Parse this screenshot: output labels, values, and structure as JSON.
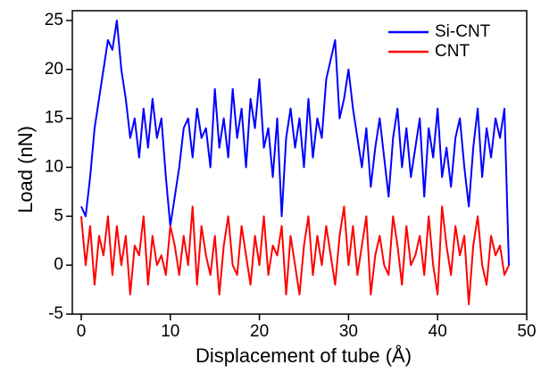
{
  "chart_data": {
    "type": "line",
    "x_label": "Displacement of tube (Å)",
    "y_label": "Load (nN)",
    "x": [
      0,
      0.5,
      1,
      1.5,
      2,
      2.5,
      3,
      3.5,
      4,
      4.5,
      5,
      5.5,
      6,
      6.5,
      7,
      7.5,
      8,
      8.5,
      9,
      9.5,
      10,
      10.5,
      11,
      11.5,
      12,
      12.5,
      13,
      13.5,
      14,
      14.5,
      15,
      15.5,
      16,
      16.5,
      17,
      17.5,
      18,
      18.5,
      19,
      19.5,
      20,
      20.5,
      21,
      21.5,
      22,
      22.5,
      23,
      23.5,
      24,
      24.5,
      25,
      25.5,
      26,
      26.5,
      27,
      27.5,
      28,
      28.5,
      29,
      29.5,
      30,
      30.5,
      31,
      31.5,
      32,
      32.5,
      33,
      33.5,
      34,
      34.5,
      35,
      35.5,
      36,
      36.5,
      37,
      37.5,
      38,
      38.5,
      39,
      39.5,
      40,
      40.5,
      41,
      41.5,
      42,
      42.5,
      43,
      43.5,
      44,
      44.5,
      45,
      45.5,
      46,
      46.5,
      47,
      47.5,
      48
    ],
    "series": [
      {
        "name": "Si-CNT",
        "color": "#0000ff",
        "values": [
          6,
          5,
          9,
          14,
          17,
          20,
          23,
          22,
          25,
          20,
          17,
          13,
          15,
          11,
          16,
          12,
          17,
          13,
          15,
          9,
          4,
          7,
          10,
          14,
          15,
          11,
          16,
          13,
          14,
          10,
          18,
          12,
          15,
          11,
          18,
          13,
          16,
          10,
          17,
          14,
          19,
          12,
          14,
          9,
          15,
          5,
          13,
          16,
          12,
          15,
          10,
          17,
          11,
          15,
          13,
          19,
          21,
          23,
          15,
          17,
          20,
          16,
          13,
          10,
          14,
          8,
          12,
          15,
          11,
          7,
          13,
          16,
          10,
          14,
          9,
          12,
          15,
          7,
          14,
          11,
          16,
          9,
          12,
          8,
          13,
          15,
          10,
          6,
          12,
          16,
          9,
          14,
          11,
          15,
          13,
          16,
          0
        ]
      },
      {
        "name": "CNT",
        "color": "#ff0000",
        "values": [
          5,
          0,
          4,
          -2,
          3,
          1,
          5,
          -1,
          4,
          0,
          3,
          -3,
          2,
          1,
          5,
          -2,
          3,
          0,
          1,
          -1,
          4,
          2,
          -1,
          3,
          0,
          6,
          -2,
          4,
          1,
          -1,
          3,
          -3,
          2,
          5,
          0,
          -1,
          4,
          1,
          -2,
          3,
          0,
          5,
          -1,
          2,
          1,
          4,
          -3,
          3,
          0,
          -3,
          2,
          5,
          -1,
          3,
          0,
          4,
          1,
          -2,
          3,
          6,
          0,
          4,
          -1,
          2,
          5,
          -3,
          1,
          3,
          0,
          -1,
          5,
          2,
          -2,
          4,
          0,
          1,
          3,
          -1,
          5,
          0,
          -3,
          6,
          2,
          -1,
          4,
          1,
          3,
          -4,
          2,
          5,
          0,
          -2,
          3,
          1,
          2,
          -1,
          0
        ]
      }
    ],
    "xlim": [
      -1,
      50
    ],
    "ylim": [
      -5,
      26
    ],
    "xticks": [
      0,
      10,
      20,
      30,
      40,
      50
    ],
    "yticks": [
      -5,
      0,
      5,
      10,
      15,
      20,
      25
    ],
    "legend": "upper right"
  }
}
